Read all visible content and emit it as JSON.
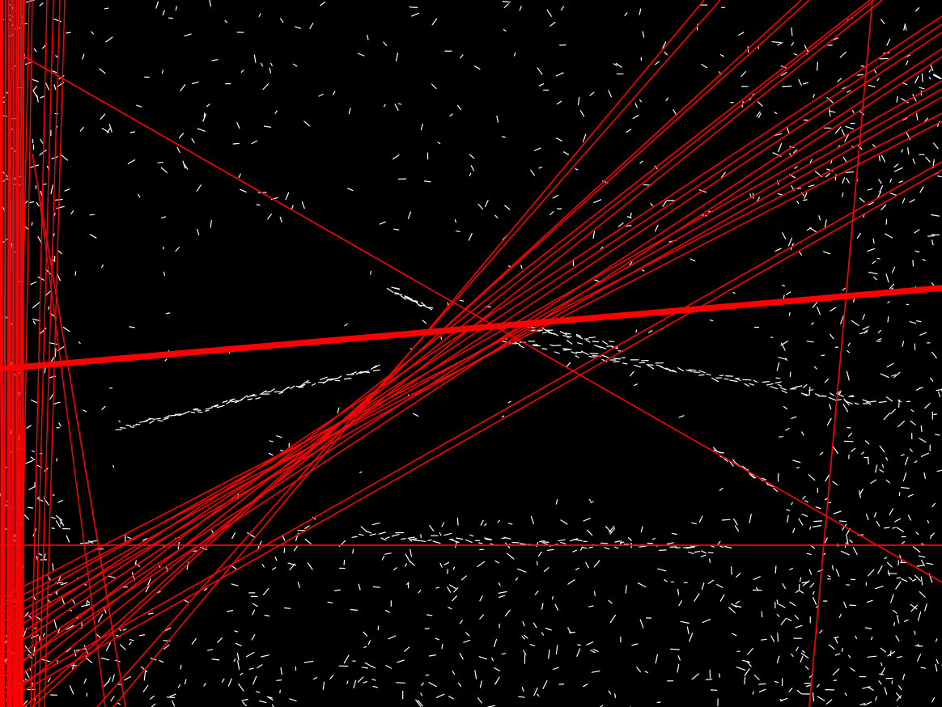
{
  "image": {
    "description_type": "edge-detection-with-hough-lines",
    "background_color": "#000000",
    "edge_color": "#ffffff",
    "line_color": "#ff0000"
  }
}
